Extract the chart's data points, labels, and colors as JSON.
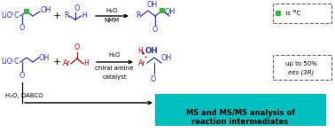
{
  "bg_color": "#ffffff",
  "cyan_box_color": "#00bfbf",
  "cyan_box_text_color": "#000000",
  "green_sq_color": "#33bb33",
  "blue_color": "#3333cc",
  "red_color": "#cc0000",
  "black": "#000000",
  "gray": "#666666",
  "condition1a": "H₂O",
  "condition1b": "NMM",
  "condition2a": "H₂O",
  "condition2b": "chiral amine",
  "condition2c": "catalyst",
  "condition3": "H₂O, DABCO",
  "cyan_line1": "MS and MS/MS analysis of",
  "cyan_line2": "reaction intermediates",
  "legend_green": "is ",
  "legend_13C": "¹³C",
  "up_to": "up to 50%",
  "ees": "ees (3R)"
}
